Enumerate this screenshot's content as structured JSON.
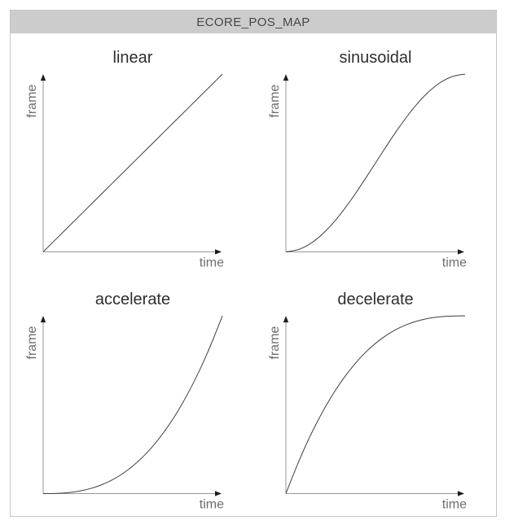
{
  "window": {
    "title": "ECORE_POS_MAP"
  },
  "colors": {
    "panel_border": "#c6c6c6",
    "header_bg": "#cccccc",
    "header_text": "#474747",
    "plot_title": "#2e2e2e",
    "axis": "#979797",
    "arrowhead": "#1c1c1c",
    "curve": "#3f3f3f",
    "axis_label": "#6e6e6e",
    "background": "#ffffff"
  },
  "chart_data": [
    {
      "type": "line",
      "id": "linear",
      "title": "linear",
      "xlabel": "time",
      "ylabel": "frame",
      "x_range": [
        0,
        1
      ],
      "y_range": [
        0,
        1
      ],
      "grid": false,
      "ticks": false,
      "x": [
        0,
        0.05,
        0.1,
        0.15,
        0.2,
        0.25,
        0.3,
        0.35,
        0.4,
        0.45,
        0.5,
        0.55,
        0.6,
        0.65,
        0.7,
        0.75,
        0.8,
        0.85,
        0.9,
        0.95,
        1
      ],
      "y": [
        0,
        0.05,
        0.1,
        0.15,
        0.2,
        0.25,
        0.3,
        0.35,
        0.4,
        0.45,
        0.5,
        0.55,
        0.6,
        0.65,
        0.7,
        0.75,
        0.8,
        0.85,
        0.9,
        0.95,
        1
      ]
    },
    {
      "type": "line",
      "id": "sinusoidal",
      "title": "sinusoidal",
      "xlabel": "time",
      "ylabel": "frame",
      "x_range": [
        0,
        1
      ],
      "y_range": [
        0,
        1
      ],
      "grid": false,
      "ticks": false,
      "x": [
        0,
        0.05,
        0.1,
        0.15,
        0.2,
        0.25,
        0.3,
        0.35,
        0.4,
        0.45,
        0.5,
        0.55,
        0.6,
        0.65,
        0.7,
        0.75,
        0.8,
        0.85,
        0.9,
        0.95,
        1
      ],
      "y": [
        0,
        0.006,
        0.024,
        0.054,
        0.095,
        0.146,
        0.206,
        0.273,
        0.345,
        0.422,
        0.5,
        0.578,
        0.655,
        0.727,
        0.794,
        0.854,
        0.905,
        0.946,
        0.976,
        0.994,
        1
      ]
    },
    {
      "type": "line",
      "id": "accelerate",
      "title": "accelerate",
      "xlabel": "time",
      "ylabel": "frame",
      "x_range": [
        0,
        1
      ],
      "y_range": [
        0,
        1
      ],
      "grid": false,
      "ticks": false,
      "x": [
        0,
        0.05,
        0.1,
        0.15,
        0.2,
        0.25,
        0.3,
        0.35,
        0.4,
        0.45,
        0.5,
        0.55,
        0.6,
        0.65,
        0.7,
        0.75,
        0.8,
        0.85,
        0.9,
        0.95,
        1
      ],
      "y": [
        0,
        0.0003,
        0.002,
        0.006,
        0.013,
        0.024,
        0.039,
        0.059,
        0.084,
        0.116,
        0.154,
        0.199,
        0.252,
        0.313,
        0.382,
        0.46,
        0.548,
        0.645,
        0.752,
        0.871,
        1
      ]
    },
    {
      "type": "line",
      "id": "decelerate",
      "title": "decelerate",
      "xlabel": "time",
      "ylabel": "frame",
      "x_range": [
        0,
        1
      ],
      "y_range": [
        0,
        1
      ],
      "grid": false,
      "ticks": false,
      "x": [
        0,
        0.05,
        0.1,
        0.15,
        0.2,
        0.25,
        0.3,
        0.35,
        0.4,
        0.45,
        0.5,
        0.55,
        0.6,
        0.65,
        0.7,
        0.75,
        0.8,
        0.85,
        0.9,
        0.95,
        1
      ],
      "y": [
        0,
        0.129,
        0.248,
        0.355,
        0.452,
        0.54,
        0.618,
        0.687,
        0.748,
        0.801,
        0.846,
        0.884,
        0.916,
        0.941,
        0.961,
        0.976,
        0.987,
        0.994,
        0.998,
        0.9997,
        1
      ]
    }
  ]
}
